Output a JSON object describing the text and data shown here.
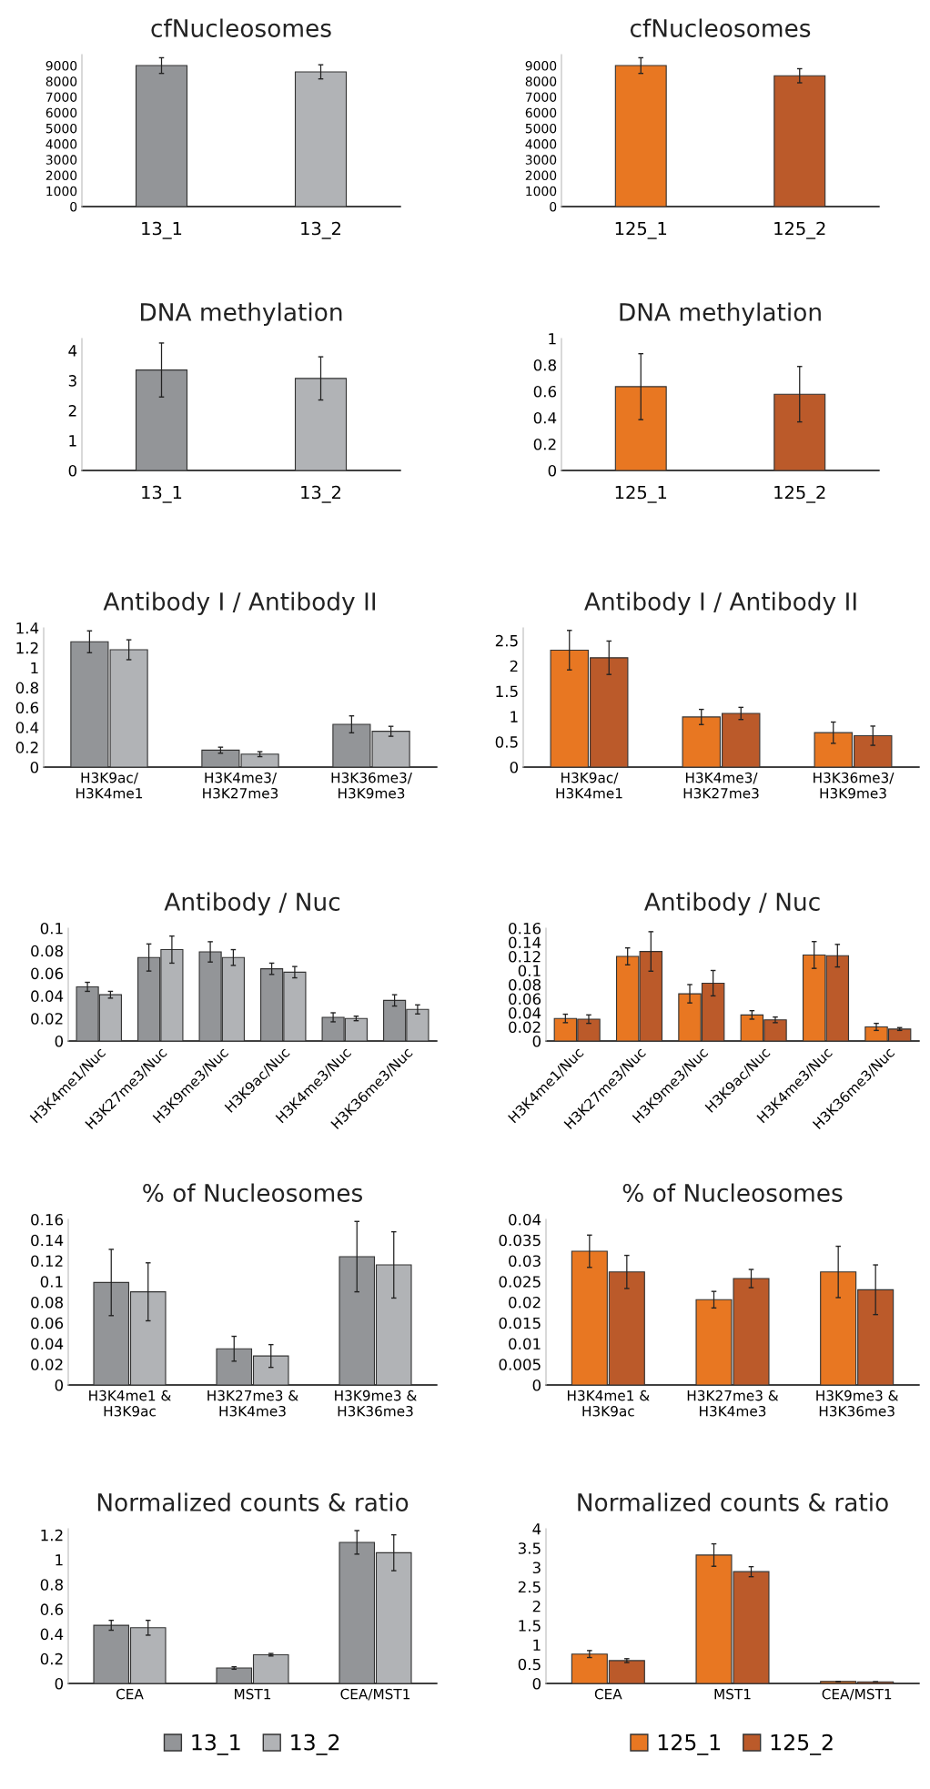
{
  "chart_data": [
    {
      "type": "bar",
      "title": "cfNucleosomes",
      "categories": [
        "13_1",
        "13_2"
      ],
      "values": [
        9000,
        8600
      ],
      "errors": [
        500,
        450
      ],
      "colors": [
        "#939598",
        "#b1b3b6"
      ],
      "ylim": [
        0,
        9700
      ],
      "yticks": [
        0,
        1000,
        2000,
        3000,
        4000,
        5000,
        6000,
        7000,
        8000,
        9000
      ]
    },
    {
      "type": "bar",
      "title": "cfNucleosomes",
      "categories": [
        "125_1",
        "125_2"
      ],
      "values": [
        9000,
        8350
      ],
      "errors": [
        500,
        450
      ],
      "colors": [
        "#e87722",
        "#bb5a2a"
      ],
      "ylim": [
        0,
        9700
      ],
      "yticks": [
        0,
        1000,
        2000,
        3000,
        4000,
        5000,
        6000,
        7000,
        8000,
        9000
      ]
    },
    {
      "type": "bar",
      "title": "DNA methylation",
      "categories": [
        "13_1",
        "13_2"
      ],
      "values": [
        3.35,
        3.07
      ],
      "errors": [
        0.9,
        0.72
      ],
      "colors": [
        "#939598",
        "#b1b3b6"
      ],
      "ylim": [
        0,
        4.4
      ],
      "yticks": [
        0,
        1,
        2,
        3,
        4
      ]
    },
    {
      "type": "bar",
      "title": "DNA methylation",
      "categories": [
        "125_1",
        "125_2"
      ],
      "values": [
        0.635,
        0.578
      ],
      "errors": [
        0.25,
        0.21
      ],
      "colors": [
        "#e87722",
        "#bb5a2a"
      ],
      "ylim": [
        0,
        1
      ],
      "yticks": [
        0,
        0.2,
        0.4,
        0.6,
        0.8,
        1
      ]
    },
    {
      "type": "bar",
      "title": "Antibody I / Antibody II",
      "categories": [
        "H3K9ac/\nH3K4me1",
        "H3K4me3/\nH3K27me3",
        "H3K36me3/\nH3K9me3"
      ],
      "ylim": [
        0,
        1.4
      ],
      "yticks": [
        0,
        0.2,
        0.4,
        0.6,
        0.8,
        1,
        1.2,
        1.4
      ],
      "series": [
        {
          "color": "#939598",
          "values": [
            1.26,
            0.17,
            0.43
          ],
          "errors": [
            0.11,
            0.03,
            0.085
          ]
        },
        {
          "color": "#b1b3b6",
          "values": [
            1.18,
            0.13,
            0.36
          ],
          "errors": [
            0.1,
            0.025,
            0.05
          ]
        }
      ]
    },
    {
      "type": "bar",
      "title": "Antibody I / Antibody II",
      "categories": [
        "H3K9ac/\nH3K4me1",
        "H3K4me3/\nH3K27me3",
        "H3K36me3/\nH3K9me3"
      ],
      "ylim": [
        0,
        2.75
      ],
      "yticks": [
        0,
        0.5,
        1,
        1.5,
        2,
        2.5
      ],
      "series": [
        {
          "color": "#e87722",
          "values": [
            2.31,
            0.99,
            0.68
          ],
          "errors": [
            0.39,
            0.15,
            0.21
          ]
        },
        {
          "color": "#bb5a2a",
          "values": [
            2.16,
            1.06,
            0.62
          ],
          "errors": [
            0.33,
            0.12,
            0.19
          ]
        }
      ]
    },
    {
      "type": "bar",
      "title": "Antibody / Nuc",
      "categories": [
        "H3K4me1/Nuc",
        "H3K27me3/Nuc",
        "H3K9me3/Nuc",
        "H3K9ac/Nuc",
        "H3K4me3/Nuc",
        "H3K36me3/Nuc"
      ],
      "ylim": [
        0,
        0.1
      ],
      "yticks": [
        0,
        0.02,
        0.04,
        0.06,
        0.08,
        0.1
      ],
      "series": [
        {
          "color": "#939598",
          "values": [
            0.048,
            0.074,
            0.079,
            0.064,
            0.021,
            0.036
          ],
          "errors": [
            0.004,
            0.012,
            0.009,
            0.005,
            0.004,
            0.005
          ]
        },
        {
          "color": "#b1b3b6",
          "values": [
            0.041,
            0.081,
            0.074,
            0.061,
            0.02,
            0.028
          ],
          "errors": [
            0.003,
            0.012,
            0.007,
            0.005,
            0.002,
            0.004
          ]
        }
      ]
    },
    {
      "type": "bar",
      "title": "Antibody / Nuc",
      "categories": [
        "H3K4me1/Nuc",
        "H3K27me3/Nuc",
        "H3K9me3/Nuc",
        "H3K9ac/Nuc",
        "H3K4me3/Nuc",
        "H3K36me3/Nuc"
      ],
      "ylim": [
        0,
        0.16
      ],
      "yticks": [
        0,
        0.02,
        0.04,
        0.06,
        0.08,
        0.1,
        0.12,
        0.14,
        0.16
      ],
      "series": [
        {
          "color": "#e87722",
          "values": [
            0.032,
            0.12,
            0.067,
            0.037,
            0.122,
            0.02
          ],
          "errors": [
            0.006,
            0.012,
            0.013,
            0.006,
            0.019,
            0.005
          ]
        },
        {
          "color": "#bb5a2a",
          "values": [
            0.031,
            0.127,
            0.082,
            0.03,
            0.121,
            0.017
          ],
          "errors": [
            0.006,
            0.028,
            0.018,
            0.004,
            0.016,
            0.002
          ]
        }
      ]
    },
    {
      "type": "bar",
      "title": "% of Nucleosomes",
      "categories": [
        "H3K4me1 &\nH3K9ac",
        "H3K27me3 &\nH3K4me3",
        "H3K9me3 &\nH3K36me3"
      ],
      "ylim": [
        0,
        0.16
      ],
      "yticks": [
        0,
        0.02,
        0.04,
        0.06,
        0.08,
        0.1,
        0.12,
        0.14,
        0.16
      ],
      "series": [
        {
          "color": "#939598",
          "values": [
            0.099,
            0.035,
            0.124
          ],
          "errors": [
            0.032,
            0.012,
            0.034
          ]
        },
        {
          "color": "#b1b3b6",
          "values": [
            0.09,
            0.028,
            0.116
          ],
          "errors": [
            0.028,
            0.011,
            0.032
          ]
        }
      ]
    },
    {
      "type": "bar",
      "title": "% of Nucleosomes",
      "categories": [
        "H3K4me1 &\nH3K9ac",
        "H3K27me3 &\nH3K4me3",
        "H3K9me3 &\nH3K36me3"
      ],
      "ylim": [
        0,
        0.04
      ],
      "yticks": [
        0,
        0.005,
        0.01,
        0.015,
        0.02,
        0.025,
        0.03,
        0.035,
        0.04
      ],
      "series": [
        {
          "color": "#e87722",
          "values": [
            0.0323,
            0.0206,
            0.0273
          ],
          "errors": [
            0.0039,
            0.002,
            0.0062
          ]
        },
        {
          "color": "#bb5a2a",
          "values": [
            0.0273,
            0.0257,
            0.023
          ],
          "errors": [
            0.004,
            0.0022,
            0.006
          ]
        }
      ]
    },
    {
      "type": "bar",
      "title": "Normalized counts & ratio",
      "categories": [
        "CEA",
        "MST1",
        "CEA/MST1"
      ],
      "ylim": [
        0,
        1.25
      ],
      "yticks": [
        0,
        0.2,
        0.4,
        0.6,
        0.8,
        1,
        1.2
      ],
      "legend": "bottom",
      "series": [
        {
          "name": "13_1",
          "color": "#939598",
          "values": [
            0.47,
            0.125,
            1.14
          ],
          "errors": [
            0.04,
            0.01,
            0.095
          ]
        },
        {
          "name": "13_2",
          "color": "#b1b3b6",
          "values": [
            0.45,
            0.232,
            1.056
          ],
          "errors": [
            0.06,
            0.01,
            0.145
          ]
        }
      ]
    },
    {
      "type": "bar",
      "title": "Normalized counts & ratio",
      "categories": [
        "CEA",
        "MST1",
        "CEA/MST1"
      ],
      "ylim": [
        0,
        4
      ],
      "yticks": [
        0,
        0.5,
        1,
        1.5,
        2,
        2.5,
        3,
        3.5,
        4
      ],
      "legend": "bottom",
      "series": [
        {
          "name": "125_1",
          "color": "#e87722",
          "values": [
            0.76,
            3.32,
            0.05
          ],
          "errors": [
            0.09,
            0.29,
            null
          ]
        },
        {
          "name": "125_2",
          "color": "#bb5a2a",
          "values": [
            0.59,
            2.89,
            0.04
          ],
          "errors": [
            0.05,
            0.13,
            null
          ]
        }
      ]
    }
  ]
}
